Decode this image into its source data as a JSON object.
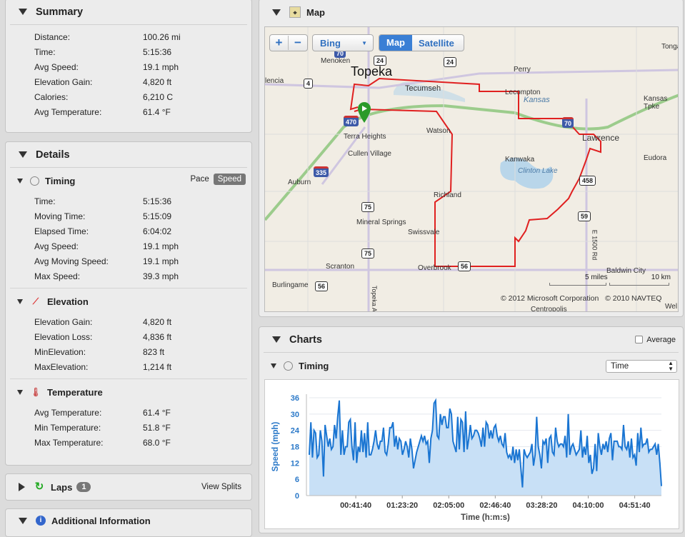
{
  "summary": {
    "title": "Summary",
    "rows": [
      {
        "label": "Distance:",
        "value": "100.26 mi"
      },
      {
        "label": "Time:",
        "value": "5:15:36"
      },
      {
        "label": "Avg Speed:",
        "value": "19.1 mph"
      },
      {
        "label": "Elevation Gain:",
        "value": "4,820 ft"
      },
      {
        "label": "Calories:",
        "value": "6,210 C"
      },
      {
        "label": "Avg Temperature:",
        "value": "61.4 °F"
      }
    ]
  },
  "details": {
    "title": "Details",
    "timing": {
      "title": "Timing",
      "pace": "Pace",
      "speed": "Speed",
      "rows": [
        {
          "label": "Time:",
          "value": "5:15:36"
        },
        {
          "label": "Moving Time:",
          "value": "5:15:09"
        },
        {
          "label": "Elapsed Time:",
          "value": "6:04:02"
        },
        {
          "label": "Avg Speed:",
          "value": "19.1 mph"
        },
        {
          "label": "Avg Moving Speed:",
          "value": "19.1 mph"
        },
        {
          "label": "Max Speed:",
          "value": "39.3 mph"
        }
      ]
    },
    "elevation": {
      "title": "Elevation",
      "rows": [
        {
          "label": "Elevation Gain:",
          "value": "4,820 ft"
        },
        {
          "label": "Elevation Loss:",
          "value": "4,836 ft"
        },
        {
          "label": "MinElevation:",
          "value": "823 ft"
        },
        {
          "label": "MaxElevation:",
          "value": "1,214 ft"
        }
      ]
    },
    "temperature": {
      "title": "Temperature",
      "rows": [
        {
          "label": "Avg Temperature:",
          "value": "61.4 °F"
        },
        {
          "label": "Min Temperature:",
          "value": "51.8 °F"
        },
        {
          "label": "Max Temperature:",
          "value": "68.0 °F"
        }
      ]
    }
  },
  "laps": {
    "title": "Laps",
    "count": "1",
    "view_splits": "View Splits"
  },
  "additional": {
    "title": "Additional Information"
  },
  "map": {
    "title": "Map",
    "zoom_in": "+",
    "zoom_out": "−",
    "provider": "Bing",
    "map_btn": "Map",
    "satellite_btn": "Satellite",
    "copyright1": "© 2012 Microsoft Corporation",
    "copyright2": "© 2010 NAVTEQ",
    "scale_miles": "5 miles",
    "scale_km": "10 km",
    "places": [
      "Topeka",
      "Tecumseh",
      "Menoken",
      "Perry",
      "Lecompton",
      "Kansas",
      "Lawrence",
      "Watson",
      "Terra Heights",
      "Cullen Village",
      "Kanwaka",
      "Clinton Lake",
      "Auburn",
      "Richland",
      "Mineral Springs",
      "Swissvale",
      "Scranton",
      "Overbrook",
      "Burlingame",
      "Baldwin City",
      "Eudora",
      "Tonga",
      "Centropolis",
      "Kansas Tpke",
      "Topeka Ave",
      "E 1500 Rd",
      "lencia",
      "Wel"
    ],
    "shields": [
      "70",
      "24",
      "24",
      "4",
      "470",
      "335",
      "75",
      "75",
      "56",
      "56",
      "70",
      "458",
      "59"
    ]
  },
  "charts": {
    "title": "Charts",
    "average": "Average",
    "timing_title": "Timing",
    "x_select": "Time"
  },
  "colors": {
    "line": "#1a75d2",
    "fill": "#c8e0f6",
    "route": "#e02020",
    "accent": "#3a7fd5"
  },
  "chart_data": {
    "type": "area",
    "xlabel": "Time (h:m:s)",
    "ylabel": "Speed (mph)",
    "ylim": [
      0,
      36
    ],
    "yticks": [
      "0",
      "6",
      "12",
      "18",
      "24",
      "30",
      "36"
    ],
    "xticks": [
      "00:41:40",
      "01:23:20",
      "02:05:00",
      "02:46:40",
      "03:28:20",
      "04:10:00",
      "04:51:40"
    ],
    "x_range": [
      "0:00:00",
      "5:15:36"
    ],
    "grid": true,
    "values": [
      15,
      27,
      14,
      24,
      23,
      14,
      15,
      24,
      20,
      7,
      26,
      22,
      18,
      21,
      17,
      18,
      26,
      21,
      29,
      35,
      15,
      24,
      15,
      18,
      18,
      27,
      28,
      18,
      13,
      27,
      12,
      18,
      16,
      24,
      16,
      23,
      14,
      27,
      15,
      15,
      17,
      20,
      24,
      19,
      17,
      20,
      20,
      25,
      16,
      15,
      19,
      25,
      25,
      27,
      18,
      22,
      17,
      21,
      20,
      15,
      17,
      20,
      18,
      14,
      21,
      17,
      10,
      13,
      16,
      18,
      20,
      22,
      20,
      22,
      19,
      20,
      12,
      21,
      24,
      34,
      35,
      22,
      21,
      30,
      26,
      29,
      29,
      25,
      25,
      32,
      30,
      20,
      18,
      16,
      29,
      17,
      28,
      27,
      16,
      31,
      17,
      21,
      26,
      21,
      22,
      24,
      24,
      23,
      21,
      18,
      25,
      18,
      27,
      26,
      21,
      24,
      21,
      25,
      26,
      22,
      20,
      22,
      19,
      18,
      23,
      16,
      14,
      15,
      13,
      18,
      12,
      17,
      13,
      17,
      10,
      3,
      17,
      15,
      14,
      15,
      16,
      19,
      11,
      15,
      29,
      18,
      15,
      10,
      20,
      19,
      21,
      12,
      21,
      22,
      16,
      15,
      25,
      20,
      18,
      19,
      19,
      18,
      22,
      14,
      30,
      15,
      18,
      19,
      17,
      15,
      16,
      17,
      24,
      14,
      18,
      15,
      22,
      12,
      15,
      8,
      10,
      19,
      9,
      23,
      18,
      15,
      19,
      17,
      20,
      16,
      21,
      23,
      13,
      20,
      20,
      20,
      18,
      18,
      17,
      26,
      18,
      17,
      20,
      14,
      21,
      14,
      15,
      11,
      23,
      16,
      25,
      18,
      19,
      19,
      21,
      16,
      17,
      17,
      18,
      19,
      15,
      19,
      12,
      3.5
    ]
  }
}
